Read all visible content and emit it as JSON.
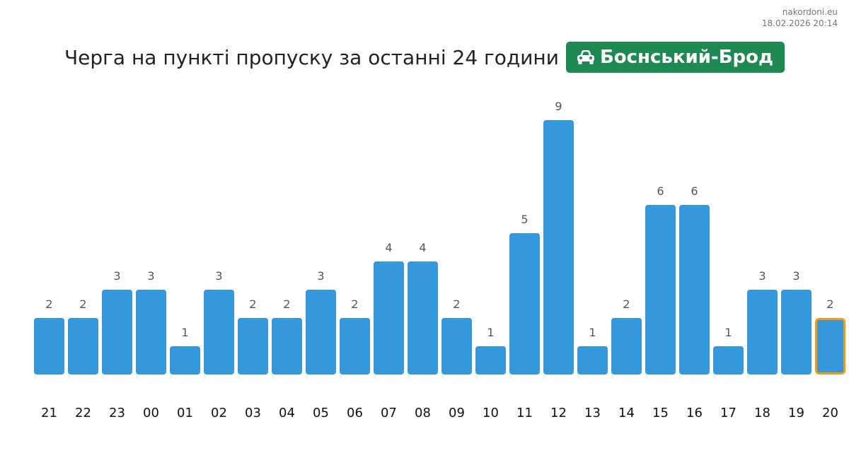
{
  "source": {
    "site": "nakordoni.eu",
    "datetime": "18.02.2026 20:14"
  },
  "header": {
    "title": "Черга на пункті пропуску за останні 24 години",
    "badge_icon": "car-icon",
    "badge_label": "Боснський-Брод",
    "badge_color": "#1e8a52"
  },
  "chart_data": {
    "type": "bar",
    "categories": [
      "21",
      "22",
      "23",
      "00",
      "01",
      "02",
      "03",
      "04",
      "05",
      "06",
      "07",
      "08",
      "09",
      "10",
      "11",
      "12",
      "13",
      "14",
      "15",
      "16",
      "17",
      "18",
      "19",
      "20"
    ],
    "values": [
      2,
      2,
      3,
      3,
      1,
      3,
      2,
      2,
      3,
      2,
      4,
      4,
      2,
      1,
      5,
      9,
      1,
      2,
      6,
      6,
      1,
      3,
      3,
      2
    ],
    "bar_color": "#3598db",
    "highlight_index": 23,
    "highlight_color": "#f39c12",
    "ylim": [
      0,
      9
    ],
    "data_labels": true,
    "grid": false,
    "legend": false
  }
}
